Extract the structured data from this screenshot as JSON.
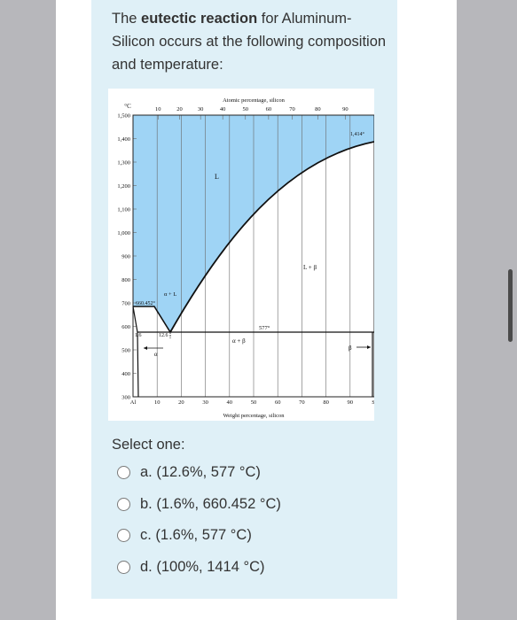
{
  "question": {
    "prefix": "The ",
    "bold": "eutectic reaction",
    "suffix": " for Aluminum-Silicon occurs at the following composition and temperature:"
  },
  "diagram": {
    "unit_label": "°C",
    "top_axis_title": "Atomic percentage, silicon",
    "bottom_axis_title": "Weight percentage, silicon",
    "top_ticks": [
      "10",
      "20",
      "30",
      "40",
      "50",
      "60",
      "70",
      "80",
      "90"
    ],
    "bottom_ticks": [
      "Al",
      "10",
      "20",
      "30",
      "40",
      "50",
      "60",
      "70",
      "80",
      "90",
      "Si"
    ],
    "y_ticks": [
      "1,500",
      "1,400",
      "1,300",
      "1,200",
      "1,100",
      "1,000",
      "900",
      "800",
      "700",
      "600",
      "500",
      "400",
      "300"
    ],
    "region_L": "L",
    "region_L_beta": "L + β",
    "region_alpha_L": "α + L",
    "region_alpha_beta": "α + β",
    "label_alpha": "α",
    "label_beta": "β",
    "melting_al": "660.452°",
    "melting_si": "1,414°",
    "eutectic_temp": "577°",
    "comp_1": "1.6",
    "comp_2": "12.6",
    "liquid_color": "#9fd4f5"
  },
  "select_label": "Select one:",
  "options": [
    {
      "text": "a. (12.6%, 577 °C)"
    },
    {
      "text": "b. (1.6%, 660.452 °C)"
    },
    {
      "text": "c. (1.6%, 577 °C)"
    },
    {
      "text": "d. (100%, 1414 °C)"
    }
  ]
}
